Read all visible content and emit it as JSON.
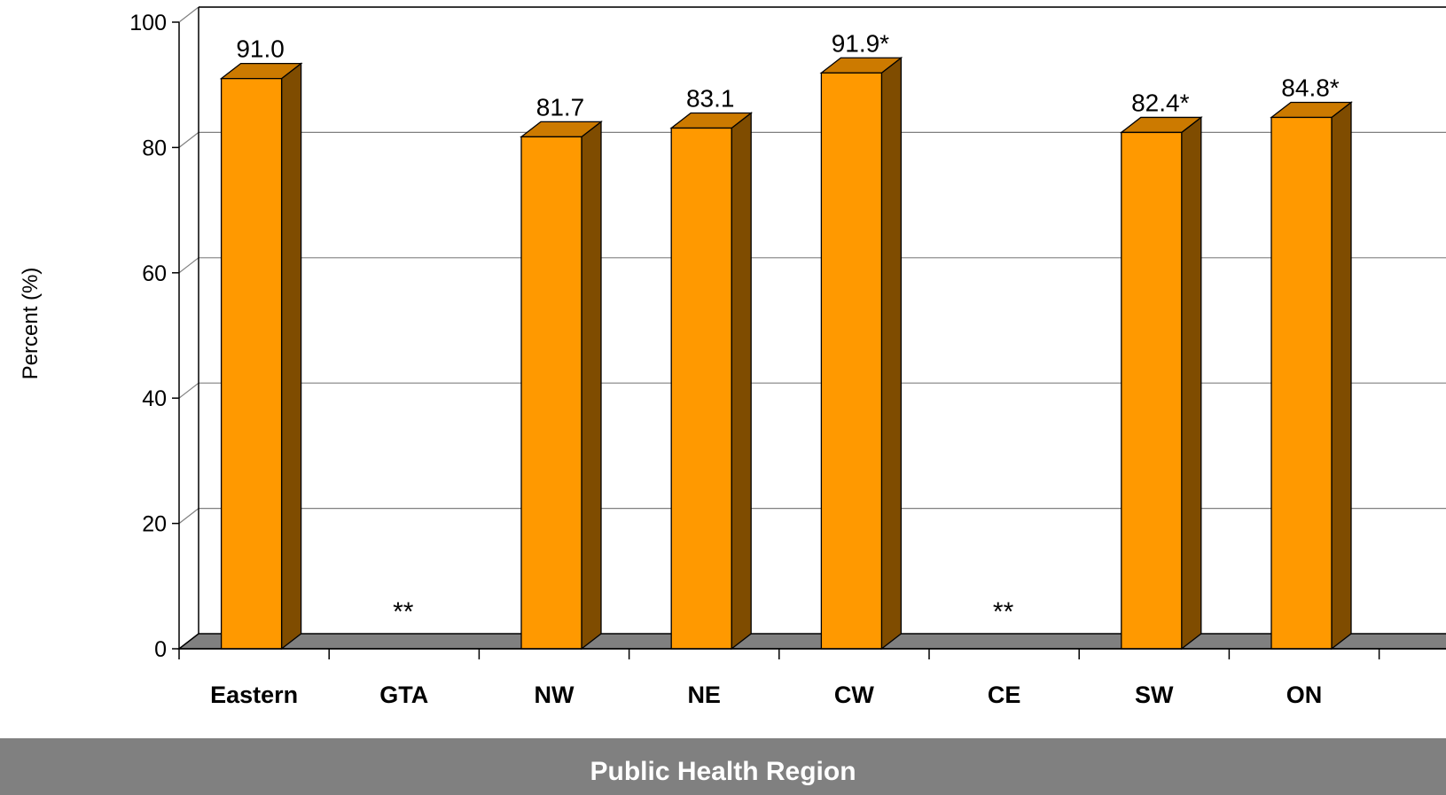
{
  "chart_data": {
    "type": "bar",
    "categories": [
      "Eastern",
      "GTA",
      "NW",
      "NE",
      "CW",
      "CE",
      "SW",
      "ON"
    ],
    "values": [
      91.0,
      null,
      81.7,
      83.1,
      91.9,
      null,
      82.4,
      84.8
    ],
    "data_labels": [
      "91.0",
      "**",
      "81.7",
      "83.1",
      "91.9*",
      "**",
      "82.4*",
      "84.8*"
    ],
    "ylabel": "Percent (%)",
    "xlabel": "Public Health Region",
    "ylim": [
      0,
      100
    ],
    "yticks": [
      0,
      20,
      40,
      60,
      80,
      100
    ],
    "grid": true,
    "style": "3d-bar",
    "bar_colors": {
      "front": "#ff9900",
      "top": "#cc7a00",
      "side": "#7f4c00"
    },
    "floor_color": "#808080",
    "axis_title_color": "#ffffff"
  }
}
